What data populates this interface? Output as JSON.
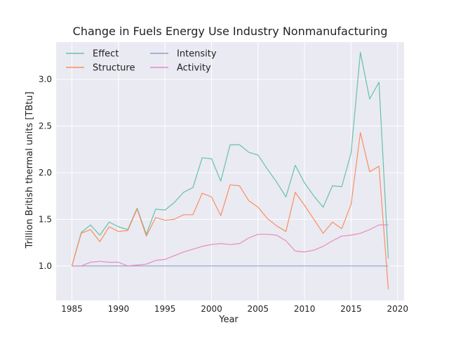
{
  "chart_data": {
    "type": "line",
    "title": "Change in Fuels Energy Use Industry Nonmanufacturing",
    "xlabel": "Year",
    "ylabel": "Trillion British thermal units [TBtu]",
    "xlim": [
      1983.3,
      2020.7
    ],
    "ylim": [
      0.63,
      3.4
    ],
    "xticks": [
      1985,
      1990,
      1995,
      2000,
      2005,
      2010,
      2015,
      2020
    ],
    "yticks": [
      1.0,
      1.5,
      2.0,
      2.5,
      3.0
    ],
    "ytick_labels": [
      "1.0",
      "1.5",
      "2.0",
      "2.5",
      "3.0"
    ],
    "grid": true,
    "legend_position": "top-left",
    "x": [
      1985,
      1986,
      1987,
      1988,
      1989,
      1990,
      1991,
      1992,
      1993,
      1994,
      1995,
      1996,
      1997,
      1998,
      1999,
      2000,
      2001,
      2002,
      2003,
      2004,
      2005,
      2006,
      2007,
      2008,
      2009,
      2010,
      2011,
      2012,
      2013,
      2014,
      2015,
      2016,
      2017,
      2018,
      2019
    ],
    "series": [
      {
        "name": "Effect",
        "color": "#66c2a5",
        "values": [
          1.0,
          1.36,
          1.44,
          1.33,
          1.47,
          1.42,
          1.39,
          1.62,
          1.34,
          1.61,
          1.6,
          1.68,
          1.79,
          1.84,
          2.16,
          2.15,
          1.91,
          2.3,
          2.3,
          2.22,
          2.19,
          2.04,
          1.9,
          1.74,
          2.08,
          1.89,
          1.75,
          1.63,
          1.86,
          1.85,
          2.21,
          3.29,
          2.79,
          2.97,
          1.08
        ]
      },
      {
        "name": "Structure",
        "color": "#fc8d62",
        "values": [
          1.0,
          1.35,
          1.39,
          1.26,
          1.42,
          1.37,
          1.38,
          1.61,
          1.32,
          1.52,
          1.49,
          1.5,
          1.55,
          1.55,
          1.78,
          1.74,
          1.54,
          1.87,
          1.86,
          1.7,
          1.63,
          1.51,
          1.43,
          1.37,
          1.79,
          1.65,
          1.5,
          1.35,
          1.47,
          1.4,
          1.66,
          2.43,
          2.01,
          2.07,
          0.75
        ]
      },
      {
        "name": "Intensity",
        "color": "#8da0cb",
        "values": [
          1.0,
          1.0,
          1.0,
          1.0,
          1.0,
          1.0,
          1.0,
          1.0,
          1.0,
          1.0,
          1.0,
          1.0,
          1.0,
          1.0,
          1.0,
          1.0,
          1.0,
          1.0,
          1.0,
          1.0,
          1.0,
          1.0,
          1.0,
          1.0,
          1.0,
          1.0,
          1.0,
          1.0,
          1.0,
          1.0,
          1.0,
          1.0,
          1.0,
          1.0,
          1.0
        ]
      },
      {
        "name": "Activity",
        "color": "#e78ac3",
        "values": [
          1.0,
          1.0,
          1.04,
          1.05,
          1.04,
          1.04,
          1.0,
          1.01,
          1.02,
          1.06,
          1.07,
          1.11,
          1.15,
          1.18,
          1.21,
          1.23,
          1.24,
          1.23,
          1.24,
          1.3,
          1.34,
          1.34,
          1.33,
          1.27,
          1.16,
          1.15,
          1.17,
          1.21,
          1.27,
          1.32,
          1.33,
          1.35,
          1.39,
          1.44,
          1.44
        ]
      }
    ]
  }
}
